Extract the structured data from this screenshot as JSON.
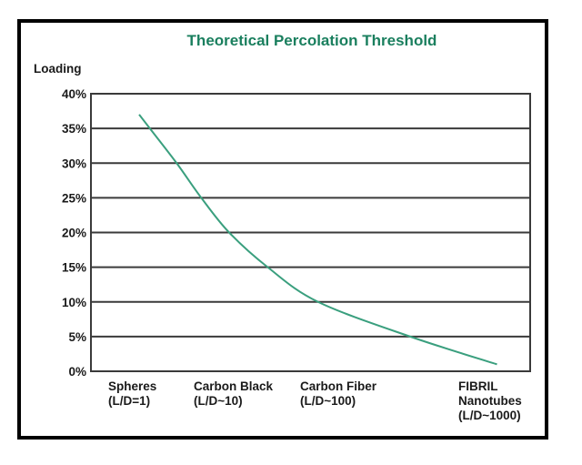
{
  "chart_data": {
    "type": "line",
    "title": "Theoretical Percolation Threshold",
    "ylabel": "Loading",
    "xlabel": "",
    "ylim": [
      0,
      40
    ],
    "y_ticks": [
      0,
      5,
      10,
      15,
      20,
      25,
      30,
      35,
      40
    ],
    "y_tick_labels": [
      "0%",
      "5%",
      "10%",
      "15%",
      "20%",
      "25%",
      "30%",
      "35%",
      "40%"
    ],
    "x_scale": "log10(L/D)",
    "xlim": [
      -0.45,
      3.65
    ],
    "categories": [
      {
        "x": 0,
        "lines": [
          "Spheres",
          "(L/D=1)"
        ]
      },
      {
        "x": 1,
        "lines": [
          "Carbon Black",
          "(L/D~10)"
        ]
      },
      {
        "x": 2,
        "lines": [
          "Carbon Fiber",
          "(L/D~100)"
        ]
      },
      {
        "x": 3,
        "lines": [
          "FIBRIL",
          "Nanotubes",
          "(L/D~1000)"
        ]
      }
    ],
    "grid": true,
    "series": [
      {
        "name": "Theoretical Percolation Threshold",
        "color": "#3a9f7e",
        "x": [
          0.0,
          0.1,
          0.35,
          0.58,
          0.84,
          1.2,
          1.67,
          2.53,
          3.34
        ],
        "y": [
          37,
          35,
          30,
          25,
          20,
          15,
          10,
          5,
          1
        ]
      }
    ],
    "colors": {
      "title": "#1a7f5e",
      "grid": "#3a3a3a",
      "frame": "#000000"
    }
  }
}
